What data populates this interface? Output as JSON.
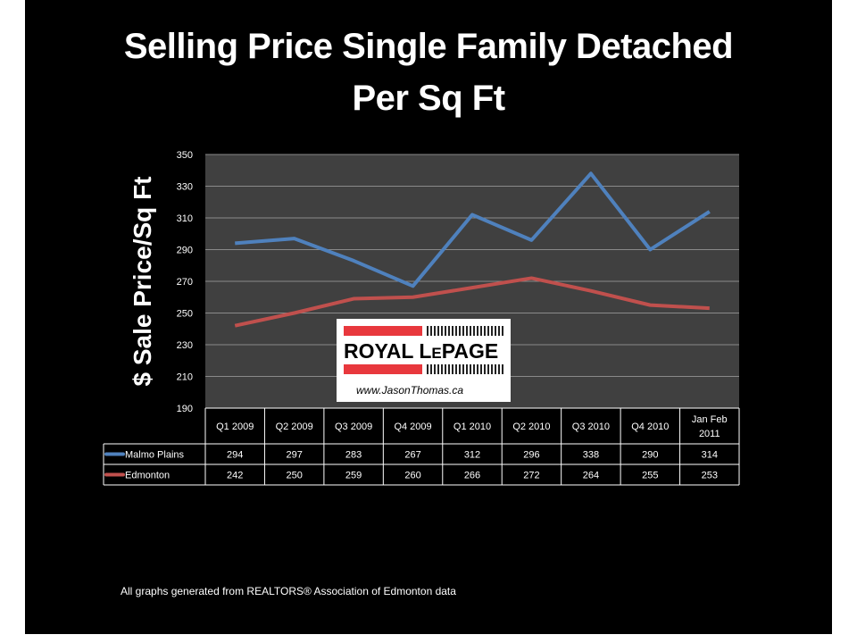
{
  "chart_data": {
    "type": "line",
    "title": "Selling Price Single Family Detached",
    "title_line2": "Per Sq Ft",
    "ylabel": "$ Sale  Price/Sq Ft",
    "xlabel": "",
    "ylim": [
      190,
      350
    ],
    "yticks": [
      190,
      210,
      230,
      250,
      270,
      290,
      310,
      330,
      350
    ],
    "grid": true,
    "legend": "data-table-left",
    "categories": [
      "Q1 2009",
      "Q2 2009",
      "Q3 2009",
      "Q4 2009",
      "Q1 2010",
      "Q2 2010",
      "Q3 2010",
      "Q4 2010",
      "Jan Feb 2011"
    ],
    "series": [
      {
        "name": "Malmo Plains",
        "color": "#4f81bd",
        "values": [
          294,
          297,
          283,
          267,
          312,
          296,
          338,
          290,
          314
        ]
      },
      {
        "name": "Edmonton",
        "color": "#c0504d",
        "values": [
          242,
          250,
          259,
          260,
          266,
          272,
          264,
          255,
          253
        ]
      }
    ]
  },
  "logo": {
    "brand": "ROYAL LEPAGE",
    "url": "www.JasonThomas.ca"
  },
  "footer": "All graphs generated from REALTORS® Association of Edmonton data"
}
